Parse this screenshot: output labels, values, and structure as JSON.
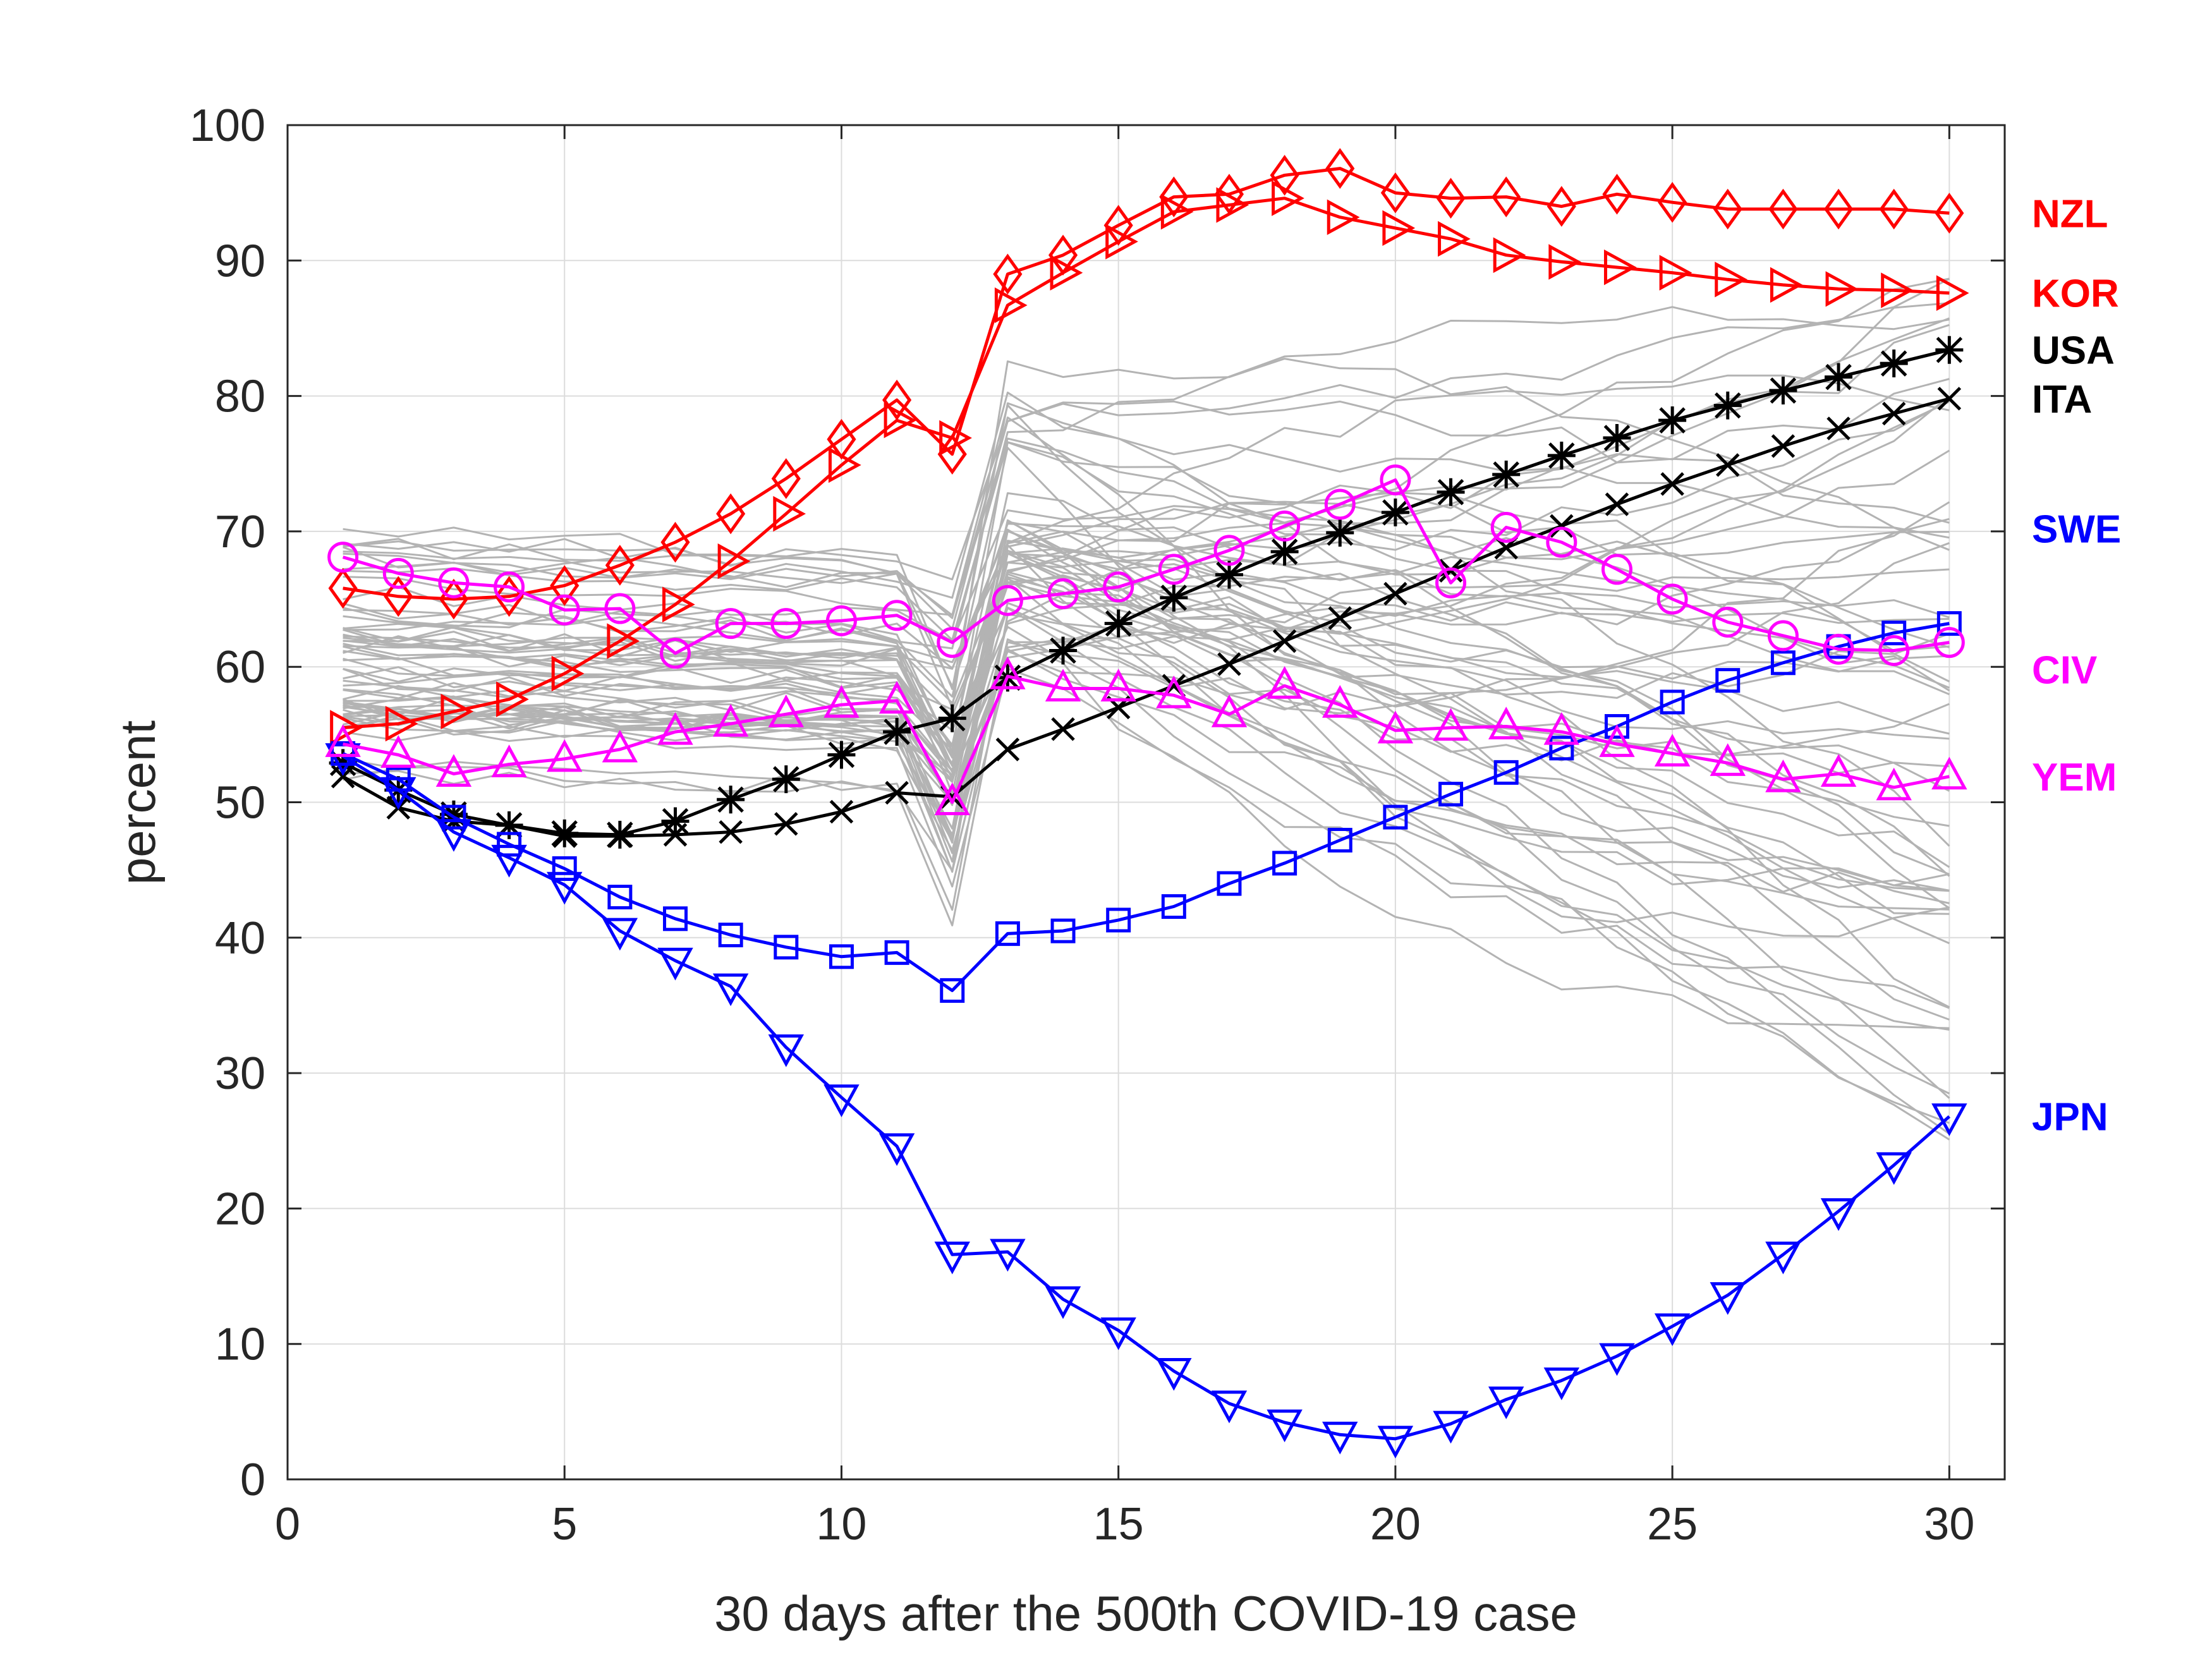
{
  "chart_data": {
    "type": "line",
    "title": "",
    "xlabel": "30 days after the 500th COVID-19 case",
    "ylabel": "percent",
    "xlim": [
      0,
      31
    ],
    "ylim": [
      0,
      100
    ],
    "xticks": [
      0,
      5,
      10,
      15,
      20,
      25,
      30
    ],
    "yticks": [
      0,
      10,
      20,
      30,
      40,
      50,
      60,
      70,
      80,
      90,
      100
    ],
    "grid": true,
    "background_series_color": "#b3b3b3",
    "background_series_count": 60,
    "series": [
      {
        "name": "NZL",
        "color": "#ff0000",
        "marker": "diamond",
        "values": [
          65.8,
          65.2,
          65.0,
          65.2,
          66.0,
          67.5,
          69.2,
          71.3,
          73.9,
          76.8,
          79.7,
          75.7,
          89.0,
          90.4,
          92.6,
          94.7,
          94.9,
          96.3,
          96.8,
          95.0,
          94.6,
          94.7,
          94.0,
          94.9,
          94.3,
          93.8,
          93.8,
          93.8,
          93.8,
          93.5
        ]
      },
      {
        "name": "KOR",
        "color": "#ff0000",
        "marker": "triangle-right",
        "values": [
          55.5,
          55.8,
          56.7,
          57.6,
          59.5,
          61.9,
          64.6,
          67.8,
          71.3,
          74.9,
          78.2,
          76.9,
          86.7,
          89.1,
          91.4,
          93.6,
          94.1,
          94.6,
          93.2,
          92.4,
          91.6,
          90.4,
          89.9,
          89.5,
          89.1,
          88.6,
          88.2,
          87.9,
          87.8,
          87.6
        ]
      },
      {
        "name": "USA",
        "color": "#000000",
        "marker": "asterisk",
        "values": [
          52.9,
          50.9,
          49.1,
          48.3,
          47.7,
          47.6,
          48.6,
          50.2,
          51.7,
          53.5,
          55.2,
          56.2,
          59.2,
          61.2,
          63.2,
          65.1,
          66.8,
          68.5,
          69.9,
          71.4,
          72.9,
          74.2,
          75.6,
          76.9,
          78.2,
          79.3,
          80.4,
          81.4,
          82.4,
          83.4
        ]
      },
      {
        "name": "ITA",
        "color": "#000000",
        "marker": "x",
        "values": [
          51.9,
          49.6,
          48.6,
          48.3,
          47.5,
          47.5,
          47.6,
          47.8,
          48.4,
          49.3,
          50.7,
          50.4,
          53.9,
          55.4,
          57.0,
          58.6,
          60.2,
          61.9,
          63.6,
          65.4,
          67.1,
          68.8,
          70.4,
          72.0,
          73.5,
          74.9,
          76.3,
          77.6,
          78.7,
          79.8
        ]
      },
      {
        "name": "SWE",
        "color": "#0000ff",
        "marker": "square",
        "values": [
          53.6,
          51.7,
          48.9,
          46.9,
          45.1,
          43.0,
          41.4,
          40.2,
          39.3,
          38.6,
          38.9,
          36.1,
          40.3,
          40.5,
          41.3,
          42.3,
          44.0,
          45.5,
          47.2,
          48.9,
          50.6,
          52.2,
          54.0,
          55.6,
          57.4,
          59.0,
          60.3,
          61.5,
          62.5,
          63.2
        ]
      },
      {
        "name": "JPN",
        "color": "#0000ff",
        "marker": "triangle-down",
        "values": [
          53.4,
          50.9,
          47.8,
          45.9,
          43.9,
          40.5,
          38.3,
          36.4,
          31.9,
          28.2,
          24.6,
          16.6,
          16.8,
          13.3,
          11.0,
          8.0,
          5.6,
          4.2,
          3.3,
          3.0,
          4.1,
          5.9,
          7.3,
          9.1,
          11.3,
          13.6,
          16.6,
          19.8,
          23.2,
          26.8
        ]
      },
      {
        "name": "CIV",
        "color": "#ff00ff",
        "marker": "circle",
        "values": [
          68.1,
          66.9,
          66.2,
          65.9,
          64.2,
          64.3,
          61.0,
          63.2,
          63.2,
          63.4,
          63.8,
          61.8,
          64.9,
          65.4,
          65.9,
          67.2,
          68.6,
          70.4,
          72.0,
          73.8,
          66.2,
          70.3,
          69.2,
          67.2,
          65.0,
          63.3,
          62.3,
          61.3,
          61.2,
          61.8
        ]
      },
      {
        "name": "YEM",
        "color": "#ff00ff",
        "marker": "triangle-up",
        "values": [
          54.3,
          53.5,
          52.1,
          52.8,
          53.2,
          53.9,
          55.2,
          55.8,
          56.5,
          57.2,
          57.5,
          50.0,
          59.3,
          58.4,
          58.4,
          57.9,
          56.5,
          58.6,
          57.2,
          55.3,
          55.5,
          55.6,
          55.2,
          54.3,
          53.6,
          52.9,
          51.7,
          52.1,
          51.1,
          51.9
        ]
      }
    ]
  }
}
